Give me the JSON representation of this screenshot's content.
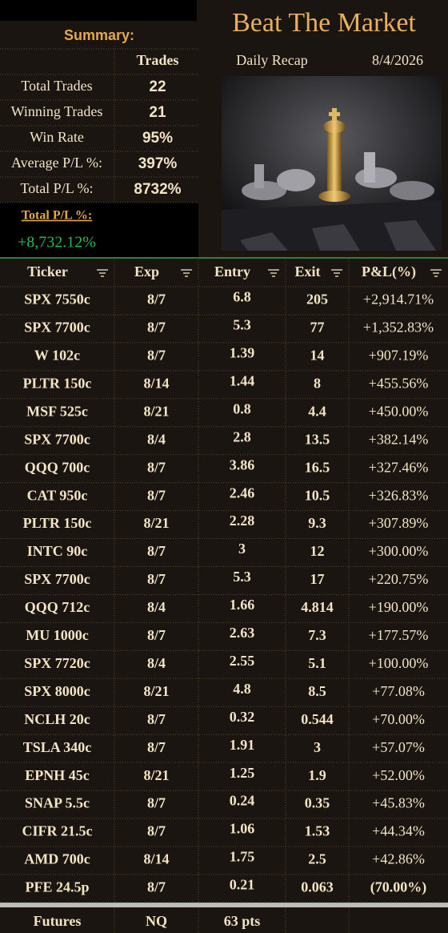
{
  "header": {
    "title": "Beat The Market",
    "subtitle": "Daily Recap",
    "date": "8/4/2026"
  },
  "summary": {
    "title": "Summary:",
    "column_header": "Trades",
    "rows": [
      {
        "label": "Total Trades",
        "value": "22"
      },
      {
        "label": "Winning Trades",
        "value": "21"
      },
      {
        "label": "Win Rate",
        "value": "95%"
      },
      {
        "label": "Average P/L %:",
        "value": "397%"
      },
      {
        "label": "Total P/L %:",
        "value": "8732%"
      }
    ],
    "total_label": "Total P/L %:",
    "total_value": "+8,732.12%"
  },
  "table": {
    "columns": [
      "Ticker",
      "Exp",
      "Entry",
      "Exit",
      "P&L(%)"
    ],
    "rows": [
      [
        "SPX 7550c",
        "8/7",
        "6.8",
        "205",
        "+2,914.71%"
      ],
      [
        "SPX 7700c",
        "8/7",
        "5.3",
        "77",
        "+1,352.83%"
      ],
      [
        "W 102c",
        "8/7",
        "1.39",
        "14",
        "+907.19%"
      ],
      [
        "PLTR 150c",
        "8/14",
        "1.44",
        "8",
        "+455.56%"
      ],
      [
        "MSF 525c",
        "8/21",
        "0.8",
        "4.4",
        "+450.00%"
      ],
      [
        "SPX 7700c",
        "8/4",
        "2.8",
        "13.5",
        "+382.14%"
      ],
      [
        "QQQ 700c",
        "8/7",
        "3.86",
        "16.5",
        "+327.46%"
      ],
      [
        "CAT 950c",
        "8/7",
        "2.46",
        "10.5",
        "+326.83%"
      ],
      [
        "PLTR 150c",
        "8/21",
        "2.28",
        "9.3",
        "+307.89%"
      ],
      [
        "INTC 90c",
        "8/7",
        "3",
        "12",
        "+300.00%"
      ],
      [
        "SPX 7700c",
        "8/7",
        "5.3",
        "17",
        "+220.75%"
      ],
      [
        "QQQ 712c",
        "8/4",
        "1.66",
        "4.814",
        "+190.00%"
      ],
      [
        "MU 1000c",
        "8/7",
        "2.63",
        "7.3",
        "+177.57%"
      ],
      [
        "SPX 7720c",
        "8/4",
        "2.55",
        "5.1",
        "+100.00%"
      ],
      [
        "SPX 8000c",
        "8/21",
        "4.8",
        "8.5",
        "+77.08%"
      ],
      [
        "NCLH 20c",
        "8/7",
        "0.32",
        "0.544",
        "+70.00%"
      ],
      [
        "TSLA 340c",
        "8/7",
        "1.91",
        "3",
        "+57.07%"
      ],
      [
        "EPNH 45c",
        "8/21",
        "1.25",
        "1.9",
        "+52.00%"
      ],
      [
        "SNAP 5.5c",
        "8/7",
        "0.24",
        "0.35",
        "+45.83%"
      ],
      [
        "CIFR 21.5c",
        "8/7",
        "1.06",
        "1.53",
        "+44.34%"
      ],
      [
        "AMD 700c",
        "8/14",
        "1.75",
        "2.5",
        "+42.86%"
      ],
      [
        "PFE 24.5p",
        "8/7",
        "0.21",
        "0.063",
        "(70.00%)"
      ]
    ]
  },
  "footer": {
    "cells": [
      "Futures",
      "NQ",
      "63 pts"
    ]
  }
}
